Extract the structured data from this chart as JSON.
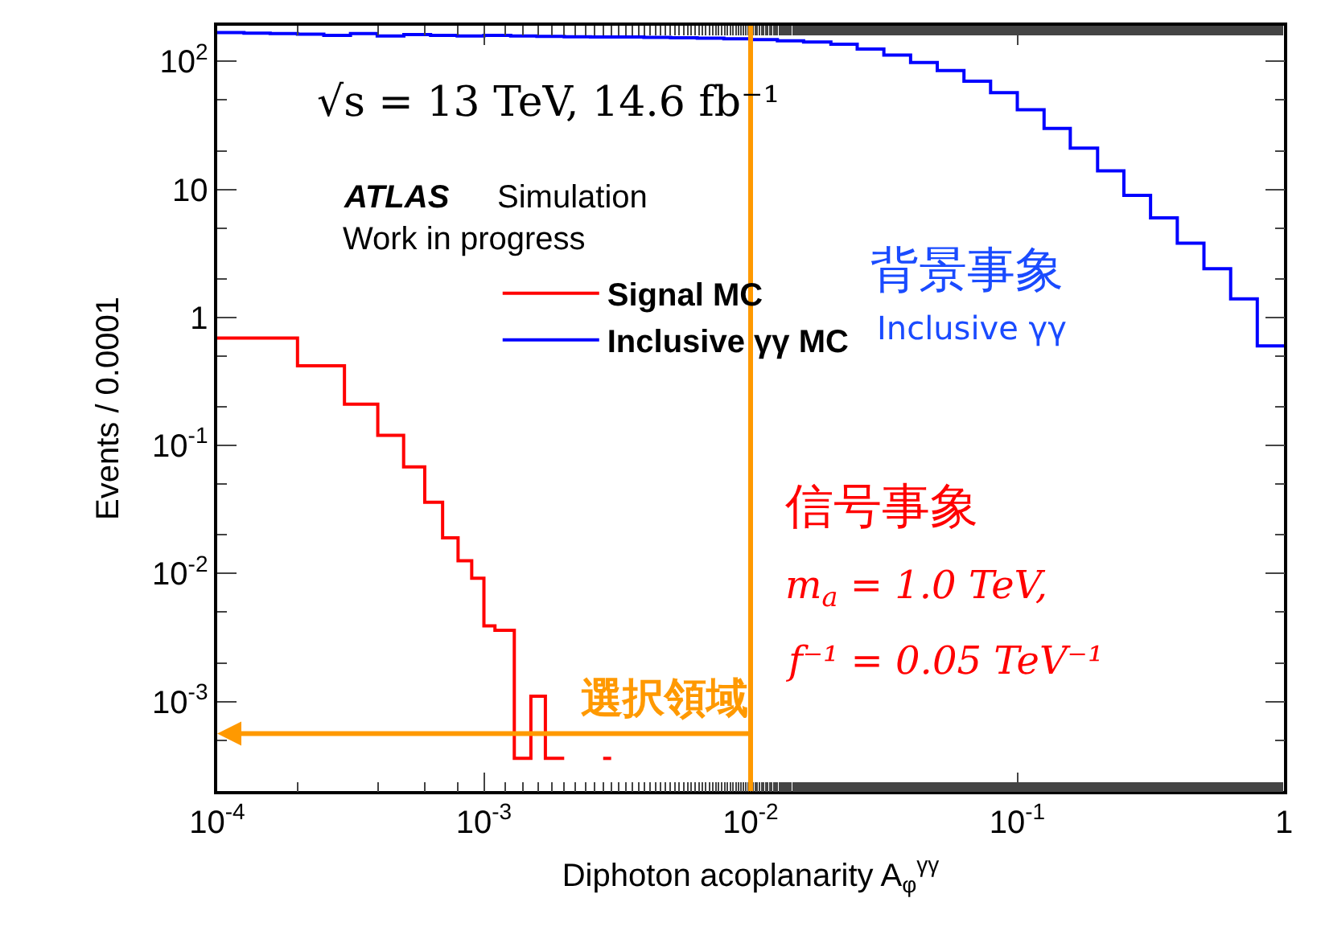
{
  "chart_data": {
    "type": "step",
    "xlabel": "Diphoton acoplanarity A$_{φ}$$^{γγ}$",
    "ylabel": "Events / 0.0001",
    "log": "xy",
    "xlim": [
      0.0001,
      1
    ],
    "ylim": [
      0.0002,
      190
    ],
    "xticks": [
      {
        "value": 0.0001,
        "label": "10$^{-4}$"
      },
      {
        "value": 0.001,
        "label": "10$^{-3}$"
      },
      {
        "value": 0.01,
        "label": "10$^{-2}$"
      },
      {
        "value": 0.1,
        "label": "10$^{-1}$"
      },
      1
    ],
    "yticks": [
      {
        "value": 0.001,
        "label": "10$^{-3}$"
      },
      {
        "value": 0.01,
        "label": "10$^{-2}$"
      },
      {
        "value": 0.1,
        "label": "10$^{-1}$"
      },
      1,
      10,
      {
        "value": 100,
        "label": "10$^{2}$"
      }
    ],
    "legend": "center",
    "line_style": "solid",
    "series": [
      {
        "name": "Signal MC",
        "color": "#ff0000",
        "x": [
          0.0001,
          0.0002,
          0.0003,
          0.0004,
          0.0005,
          0.0006,
          0.0007,
          0.0008,
          0.0009,
          0.001,
          0.0011,
          0.0012,
          0.0013,
          0.0014,
          0.0015,
          0.0016,
          0.0017,
          0.0018,
          0.0019,
          0.002,
          0.0021,
          0.0028,
          0.003
        ],
        "values": [
          0.69,
          0.42,
          0.21,
          0.12,
          0.068,
          0.036,
          0.019,
          0.0126,
          0.0092,
          0.0039,
          0.0036,
          0.0036,
          0.00036,
          0.00036,
          0.0011,
          0.0011,
          0.00036,
          0.00036,
          0.00036,
          0.00036,
          null,
          0.00036,
          0.00036
        ]
      },
      {
        "name": "Inclusive γγ MC",
        "color": "#0000ff",
        "x": [
          0.0001,
          0.000126,
          0.000158,
          0.0002,
          0.000251,
          0.000316,
          0.000398,
          0.000501,
          0.000631,
          0.000794,
          0.001,
          0.00126,
          0.00158,
          0.002,
          0.00251,
          0.00316,
          0.00398,
          0.00501,
          0.00631,
          0.00794,
          0.01,
          0.0126,
          0.0158,
          0.02,
          0.0251,
          0.0316,
          0.0398,
          0.0501,
          0.0631,
          0.0794,
          0.1,
          0.126,
          0.158,
          0.2,
          0.251,
          0.316,
          0.398,
          0.501,
          0.631,
          0.794,
          1
        ],
        "values": [
          168,
          166,
          165,
          163,
          160,
          165,
          158,
          162,
          160,
          158,
          160,
          158,
          157,
          156,
          155,
          155,
          154,
          153,
          152,
          150,
          148,
          145,
          142,
          136,
          125,
          112,
          98,
          85,
          70,
          57,
          42,
          30,
          21,
          14,
          9,
          6,
          3.8,
          2.4,
          1.4,
          0.6,
          0.6
        ]
      }
    ],
    "ref_lines": [
      {
        "axis": "x",
        "value": 0.01,
        "color": "#ff9900",
        "line_style": "solid"
      }
    ],
    "annotations": [
      "√s = 13 TeV, 14.6 fb⁻¹",
      "ATLAS",
      "Simulation",
      "Work in progress",
      "背景事象",
      "Inclusive γγ",
      "信号事象",
      "m$_{a}$ = 1.0 TeV,",
      "f⁻¹ = 0.05 TeV⁻¹",
      "選択領域"
    ]
  }
}
